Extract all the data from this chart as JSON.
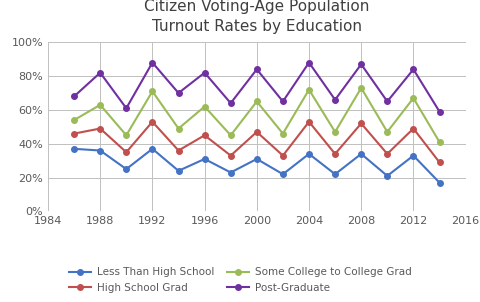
{
  "title": "Citizen Voting-Age Population\nTurnout Rates by Education",
  "years": [
    1986,
    1988,
    1990,
    1992,
    1994,
    1996,
    1998,
    2000,
    2002,
    2004,
    2006,
    2008,
    2010,
    2012,
    2014
  ],
  "less_than_hs": [
    0.37,
    0.36,
    0.25,
    0.37,
    0.24,
    0.31,
    0.23,
    0.31,
    0.22,
    0.34,
    0.22,
    0.34,
    0.21,
    0.33,
    0.17
  ],
  "hs_grad": [
    0.46,
    0.49,
    0.35,
    0.53,
    0.36,
    0.45,
    0.33,
    0.47,
    0.33,
    0.53,
    0.34,
    0.52,
    0.34,
    0.49,
    0.29
  ],
  "some_college": [
    0.54,
    0.63,
    0.45,
    0.71,
    0.49,
    0.62,
    0.45,
    0.65,
    0.46,
    0.72,
    0.47,
    0.73,
    0.47,
    0.67,
    0.41
  ],
  "post_grad": [
    0.68,
    0.82,
    0.61,
    0.88,
    0.7,
    0.82,
    0.64,
    0.84,
    0.65,
    0.88,
    0.66,
    0.87,
    0.65,
    0.84,
    0.59
  ],
  "color_hs_less": "#4472C4",
  "color_hs_grad": "#C0504D",
  "color_some_coll": "#9BBB59",
  "color_post_grad": "#7030A0",
  "xlim": [
    1984,
    2016
  ],
  "ylim": [
    0.0,
    1.0
  ],
  "yticks": [
    0.0,
    0.2,
    0.4,
    0.6,
    0.8,
    1.0
  ],
  "xticks": [
    1984,
    1988,
    1992,
    1996,
    2000,
    2004,
    2008,
    2012,
    2016
  ],
  "legend_labels": [
    "Less Than High School",
    "High School Grad",
    "Some College to College Grad",
    "Post-Graduate"
  ],
  "title_color": "#404040",
  "title_fontsize": 11,
  "tick_color": "#595959",
  "tick_fontsize": 8,
  "grid_color": "#C0C0C0",
  "bg_color": "#FFFFFF",
  "marker_size": 4,
  "line_width": 1.5,
  "legend_fontsize": 7.5
}
